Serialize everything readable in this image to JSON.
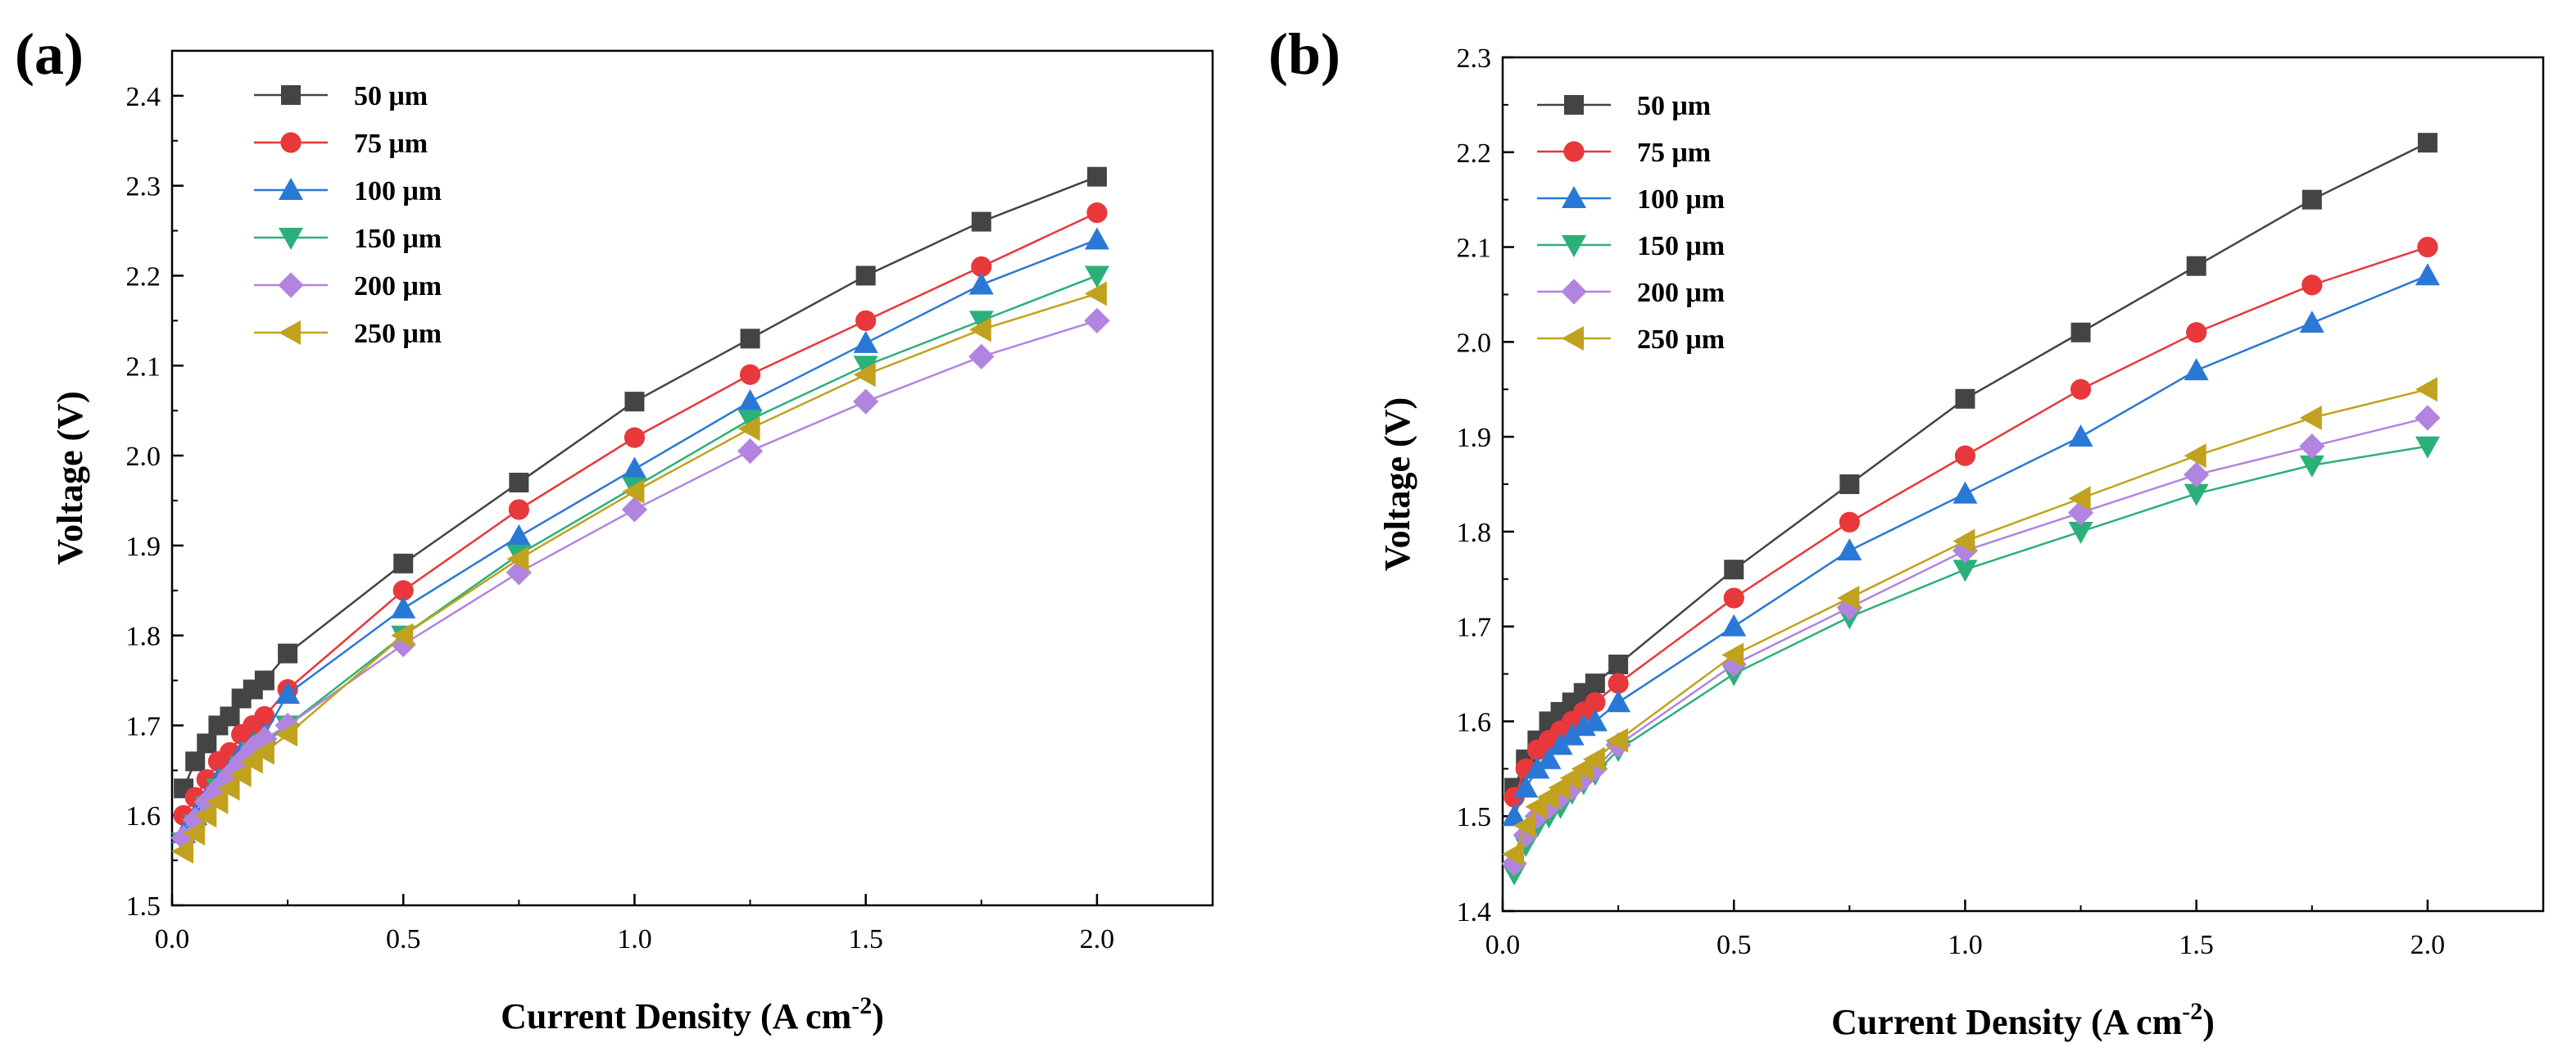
{
  "chart_data": [
    {
      "type": "line",
      "panel_label": "(a)",
      "xlabel": "Current Density (A cm",
      "xlabel_sup": "-2",
      "xlabel_end": ")",
      "ylabel": "Voltage (V)",
      "xlim": [
        0.0,
        2.25
      ],
      "ylim": [
        1.5,
        2.45
      ],
      "xticks": [
        0.0,
        0.5,
        1.0,
        1.5,
        2.0
      ],
      "xtick_labels": [
        "0.0",
        "0.5",
        "1.0",
        "1.5",
        "2.0"
      ],
      "yticks": [
        1.5,
        1.6,
        1.7,
        1.8,
        1.9,
        2.0,
        2.1,
        2.2,
        2.3,
        2.4
      ],
      "ytick_labels": [
        "1.5",
        "1.6",
        "1.7",
        "1.8",
        "1.9",
        "2.0",
        "2.1",
        "2.2",
        "2.3",
        "2.4"
      ],
      "grid": false,
      "legend_position": "top-left",
      "x": [
        0.025,
        0.05,
        0.075,
        0.1,
        0.125,
        0.15,
        0.175,
        0.2,
        0.25,
        0.5,
        0.75,
        1.0,
        1.25,
        1.5,
        1.75,
        2.0
      ],
      "series": [
        {
          "name": "50 μm",
          "color": "#444444",
          "marker": "square",
          "values": [
            1.63,
            1.66,
            1.68,
            1.7,
            1.71,
            1.73,
            1.74,
            1.75,
            1.78,
            1.88,
            1.97,
            2.06,
            2.13,
            2.2,
            2.26,
            2.31
          ]
        },
        {
          "name": "75 μm",
          "color": "#e8383b",
          "marker": "circle",
          "values": [
            1.6,
            1.62,
            1.64,
            1.66,
            1.67,
            1.69,
            1.7,
            1.71,
            1.74,
            1.85,
            1.94,
            2.02,
            2.09,
            2.15,
            2.21,
            2.27
          ]
        },
        {
          "name": "100 μm",
          "color": "#2a78d6",
          "marker": "triangle-up",
          "values": [
            1.58,
            1.6,
            1.62,
            1.64,
            1.65,
            1.67,
            1.68,
            1.69,
            1.735,
            1.83,
            1.91,
            1.985,
            2.06,
            2.125,
            2.19,
            2.24
          ]
        },
        {
          "name": "150 μm",
          "color": "#2bb07a",
          "marker": "triangle-down",
          "values": [
            1.57,
            1.59,
            1.61,
            1.63,
            1.64,
            1.655,
            1.67,
            1.68,
            1.7,
            1.8,
            1.89,
            1.965,
            2.04,
            2.1,
            2.15,
            2.2
          ]
        },
        {
          "name": "200 μm",
          "color": "#b184e0",
          "marker": "diamond",
          "values": [
            1.575,
            1.595,
            1.615,
            1.63,
            1.645,
            1.66,
            1.675,
            1.685,
            1.7,
            1.79,
            1.87,
            1.94,
            2.005,
            2.06,
            2.11,
            2.15
          ]
        },
        {
          "name": "250 μm",
          "color": "#c1a21e",
          "marker": "triangle-left",
          "values": [
            1.56,
            1.58,
            1.6,
            1.615,
            1.63,
            1.645,
            1.66,
            1.67,
            1.69,
            1.8,
            1.885,
            1.96,
            2.03,
            2.09,
            2.14,
            2.18
          ]
        }
      ]
    },
    {
      "type": "line",
      "panel_label": "(b)",
      "xlabel": "Current Density (A cm",
      "xlabel_sup": "-2",
      "xlabel_end": ")",
      "ylabel": "Voltage (V)",
      "xlim": [
        0.0,
        2.25
      ],
      "ylim": [
        1.4,
        2.3
      ],
      "xticks": [
        0.0,
        0.5,
        1.0,
        1.5,
        2.0
      ],
      "xtick_labels": [
        "0.0",
        "0.5",
        "1.0",
        "1.5",
        "2.0"
      ],
      "yticks": [
        1.4,
        1.5,
        1.6,
        1.7,
        1.8,
        1.9,
        2.0,
        2.1,
        2.2,
        2.3
      ],
      "ytick_labels": [
        "1.4",
        "1.5",
        "1.6",
        "1.7",
        "1.8",
        "1.9",
        "2.0",
        "2.1",
        "2.2",
        "2.3"
      ],
      "grid": false,
      "legend_position": "top-left",
      "x": [
        0.025,
        0.05,
        0.075,
        0.1,
        0.125,
        0.15,
        0.175,
        0.2,
        0.25,
        0.5,
        0.75,
        1.0,
        1.25,
        1.5,
        1.75,
        2.0
      ],
      "series": [
        {
          "name": "50 μm",
          "color": "#444444",
          "marker": "square",
          "values": [
            1.53,
            1.56,
            1.58,
            1.6,
            1.61,
            1.62,
            1.63,
            1.64,
            1.66,
            1.76,
            1.85,
            1.94,
            2.01,
            2.08,
            2.15,
            2.21
          ]
        },
        {
          "name": "75 μm",
          "color": "#e8383b",
          "marker": "circle",
          "values": [
            1.52,
            1.55,
            1.57,
            1.58,
            1.59,
            1.6,
            1.61,
            1.62,
            1.64,
            1.73,
            1.81,
            1.88,
            1.95,
            2.01,
            2.06,
            2.1
          ]
        },
        {
          "name": "100 μm",
          "color": "#2a78d6",
          "marker": "triangle-up",
          "values": [
            1.5,
            1.53,
            1.55,
            1.56,
            1.575,
            1.585,
            1.595,
            1.6,
            1.62,
            1.7,
            1.78,
            1.84,
            1.9,
            1.97,
            2.02,
            2.07
          ]
        },
        {
          "name": "150 μm",
          "color": "#2bb07a",
          "marker": "triangle-down",
          "values": [
            1.44,
            1.47,
            1.49,
            1.5,
            1.51,
            1.525,
            1.535,
            1.545,
            1.57,
            1.65,
            1.71,
            1.76,
            1.8,
            1.84,
            1.87,
            1.89
          ]
        },
        {
          "name": "200 μm",
          "color": "#b184e0",
          "marker": "diamond",
          "values": [
            1.45,
            1.48,
            1.5,
            1.51,
            1.52,
            1.53,
            1.54,
            1.55,
            1.575,
            1.66,
            1.72,
            1.78,
            1.82,
            1.86,
            1.89,
            1.92
          ]
        },
        {
          "name": "250 μm",
          "color": "#c1a21e",
          "marker": "triangle-left",
          "values": [
            1.46,
            1.49,
            1.51,
            1.52,
            1.53,
            1.54,
            1.55,
            1.56,
            1.58,
            1.67,
            1.73,
            1.79,
            1.835,
            1.88,
            1.92,
            1.95
          ]
        }
      ]
    }
  ]
}
